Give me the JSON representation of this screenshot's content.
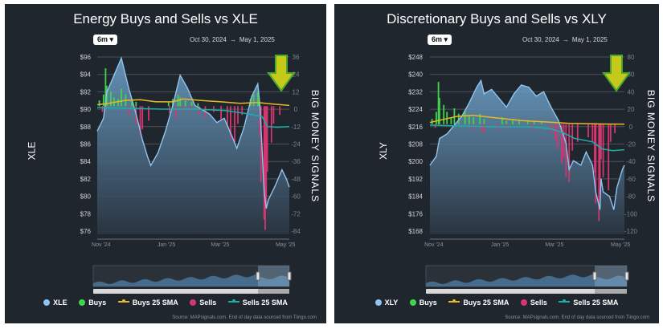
{
  "source_note": "Source: MAPsignals.com. End of day data sourced from Tiingo.com",
  "chart_data": [
    {
      "type": "line",
      "title": "Energy Buys and Sells vs XLE",
      "range_button": "6m",
      "date_from": "Oct 30, 2024",
      "date_arrow": "→",
      "date_to": "May 1, 2025",
      "ylabel_left": "XLE",
      "ylabel_right": "BIG MONEY SIGNALS",
      "y_left_ticks": [
        "$96",
        "$94",
        "$92",
        "$90",
        "$88",
        "$86",
        "$84",
        "$82",
        "$80",
        "$78",
        "$76"
      ],
      "y_left_range": [
        75,
        96
      ],
      "y_right_ticks": [
        "36",
        "24",
        "12",
        "0",
        "-12",
        "-24",
        "-36",
        "-48",
        "-60",
        "-72",
        "-84"
      ],
      "y_right_range": [
        -88,
        36
      ],
      "x_ticks": [
        "Nov '24",
        "Jan '25",
        "Mar '25",
        "May '25"
      ],
      "x_range": [
        "2024-10-30",
        "2025-05-01"
      ],
      "colors": {
        "price": "#8ec5ef",
        "buys": "#3fd44a",
        "buys_sma": "#e8b825",
        "sells": "#d43670",
        "sells_sma": "#1ab0a8"
      },
      "legend": [
        "XLE",
        "Buys",
        "Buys 25 SMA",
        "Sells",
        "Sells 25 SMA"
      ],
      "arrow_color": "#c4c91a",
      "series": [
        {
          "name": "XLE",
          "values": [
            [
              "2024-10-30",
              87.0
            ],
            [
              "2024-11-05",
              88.5
            ],
            [
              "2024-11-08",
              91.5
            ],
            [
              "2024-11-15",
              93.5
            ],
            [
              "2024-11-22",
              95.5
            ],
            [
              "2024-11-29",
              92.0
            ],
            [
              "2024-12-06",
              89.0
            ],
            [
              "2024-12-12",
              86.0
            ],
            [
              "2024-12-17",
              84.0
            ],
            [
              "2024-12-20",
              83.0
            ],
            [
              "2024-12-27",
              84.5
            ],
            [
              "2025-01-03",
              87.0
            ],
            [
              "2025-01-10",
              90.0
            ],
            [
              "2025-01-17",
              93.5
            ],
            [
              "2025-01-24",
              92.0
            ],
            [
              "2025-01-31",
              90.0
            ],
            [
              "2025-02-07",
              89.5
            ],
            [
              "2025-02-14",
              89.0
            ],
            [
              "2025-02-21",
              88.0
            ],
            [
              "2025-02-28",
              88.5
            ],
            [
              "2025-03-07",
              86.5
            ],
            [
              "2025-03-12",
              85.0
            ],
            [
              "2025-03-19",
              87.5
            ],
            [
              "2025-03-26",
              91.0
            ],
            [
              "2025-04-01",
              92.5
            ],
            [
              "2025-04-03",
              90.0
            ],
            [
              "2025-04-07",
              80.0
            ],
            [
              "2025-04-09",
              78.0
            ],
            [
              "2025-04-11",
              79.0
            ],
            [
              "2025-04-17",
              80.5
            ],
            [
              "2025-04-24",
              82.5
            ],
            [
              "2025-04-28",
              81.5
            ],
            [
              "2025-05-01",
              80.5
            ]
          ]
        },
        {
          "name": "Buys",
          "values": [
            [
              "2024-11-01",
              4
            ],
            [
              "2024-11-05",
              8
            ],
            [
              "2024-11-07",
              26
            ],
            [
              "2024-11-08",
              14
            ],
            [
              "2024-11-12",
              10
            ],
            [
              "2024-11-15",
              6
            ],
            [
              "2024-11-19",
              5
            ],
            [
              "2024-11-22",
              12
            ],
            [
              "2024-11-26",
              8
            ],
            [
              "2024-12-02",
              5
            ],
            [
              "2024-12-06",
              3
            ],
            [
              "2025-01-06",
              3
            ],
            [
              "2025-01-10",
              5
            ],
            [
              "2025-01-15",
              8
            ],
            [
              "2025-01-17",
              6
            ],
            [
              "2025-01-22",
              4
            ],
            [
              "2025-01-28",
              3
            ],
            [
              "2025-02-03",
              2
            ],
            [
              "2025-03-25",
              5
            ],
            [
              "2025-03-28",
              8
            ],
            [
              "2025-04-01",
              10
            ],
            [
              "2025-04-02",
              6
            ]
          ]
        },
        {
          "name": "Buys 25 SMA",
          "values": [
            [
              "2024-10-30",
              1
            ],
            [
              "2024-11-10",
              2
            ],
            [
              "2024-11-25",
              4
            ],
            [
              "2024-12-10",
              4.5
            ],
            [
              "2024-12-25",
              3
            ],
            [
              "2025-01-10",
              3
            ],
            [
              "2025-01-20",
              5
            ],
            [
              "2025-02-05",
              4
            ],
            [
              "2025-02-25",
              3
            ],
            [
              "2025-03-15",
              2
            ],
            [
              "2025-04-01",
              2.5
            ],
            [
              "2025-04-15",
              1.5
            ],
            [
              "2025-05-01",
              0.5
            ]
          ]
        },
        {
          "name": "Sells",
          "values": [
            [
              "2024-11-04",
              -4
            ],
            [
              "2024-11-29",
              -6
            ],
            [
              "2024-12-06",
              -12
            ],
            [
              "2024-12-10",
              -20
            ],
            [
              "2024-12-12",
              -16
            ],
            [
              "2024-12-18",
              -10
            ],
            [
              "2025-01-07",
              -5
            ],
            [
              "2025-01-13",
              -8
            ],
            [
              "2025-01-20",
              -4
            ],
            [
              "2025-01-27",
              -3
            ],
            [
              "2025-02-04",
              -6
            ],
            [
              "2025-02-10",
              -8
            ],
            [
              "2025-02-18",
              -4
            ],
            [
              "2025-02-25",
              -9
            ],
            [
              "2025-03-03",
              -14
            ],
            [
              "2025-03-06",
              -22
            ],
            [
              "2025-03-10",
              -26
            ],
            [
              "2025-03-13",
              -12
            ],
            [
              "2025-03-17",
              -6
            ],
            [
              "2025-04-03",
              -20
            ],
            [
              "2025-04-04",
              -52
            ],
            [
              "2025-04-07",
              -78
            ],
            [
              "2025-04-08",
              -85
            ],
            [
              "2025-04-09",
              -70
            ],
            [
              "2025-04-10",
              -45
            ],
            [
              "2025-04-14",
              -25
            ],
            [
              "2025-04-16",
              -12
            ],
            [
              "2025-04-22",
              -6
            ]
          ]
        },
        {
          "name": "Sells 25 SMA",
          "values": [
            [
              "2024-10-30",
              -1
            ],
            [
              "2024-12-01",
              -1.5
            ],
            [
              "2025-01-01",
              -2
            ],
            [
              "2025-02-01",
              -2
            ],
            [
              "2025-03-01",
              -3
            ],
            [
              "2025-03-20",
              -5
            ],
            [
              "2025-04-05",
              -7
            ],
            [
              "2025-04-10",
              -14
            ],
            [
              "2025-04-20",
              -14.5
            ],
            [
              "2025-05-01",
              -14
            ]
          ]
        }
      ]
    },
    {
      "type": "line",
      "title": "Discretionary Buys and Sells vs XLY",
      "range_button": "6m",
      "date_from": "Oct 30, 2024",
      "date_arrow": "→",
      "date_to": "May 1, 2025",
      "ylabel_left": "XLY",
      "ylabel_right": "BIG MONEY SIGNALS",
      "y_left_ticks": [
        "$248",
        "$240",
        "$232",
        "$224",
        "$216",
        "$208",
        "$200",
        "$192",
        "$184",
        "$176",
        "$168"
      ],
      "y_left_range": [
        167,
        248
      ],
      "y_right_ticks": [
        "80",
        "60",
        "40",
        "20",
        "0",
        "-20",
        "-40",
        "-60",
        "-80",
        "-100",
        "-120"
      ],
      "y_right_range": [
        -125,
        80
      ],
      "x_ticks": [
        "Nov '24",
        "Jan '25",
        "Mar '25",
        "May '25"
      ],
      "x_range": [
        "2024-10-30",
        "2025-05-01"
      ],
      "colors": {
        "price": "#8ec5ef",
        "buys": "#3fd44a",
        "buys_sma": "#e8b825",
        "sells": "#d43670",
        "sells_sma": "#1ab0a8"
      },
      "legend": [
        "XLY",
        "Buys",
        "Buys 25 SMA",
        "Sells",
        "Sells 25 SMA"
      ],
      "arrow_color": "#c4c91a",
      "series": [
        {
          "name": "XLY",
          "values": [
            [
              "2024-10-30",
              198
            ],
            [
              "2024-11-05",
              202
            ],
            [
              "2024-11-08",
              210
            ],
            [
              "2024-11-15",
              212
            ],
            [
              "2024-11-22",
              216
            ],
            [
              "2024-11-29",
              220
            ],
            [
              "2024-12-06",
              226
            ],
            [
              "2024-12-13",
              233
            ],
            [
              "2024-12-17",
              236
            ],
            [
              "2024-12-20",
              230
            ],
            [
              "2024-12-27",
              232
            ],
            [
              "2025-01-03",
              228
            ],
            [
              "2025-01-10",
              224
            ],
            [
              "2025-01-17",
              230
            ],
            [
              "2025-01-24",
              234
            ],
            [
              "2025-01-31",
              233
            ],
            [
              "2025-02-07",
              229
            ],
            [
              "2025-02-14",
              231
            ],
            [
              "2025-02-21",
              224
            ],
            [
              "2025-02-28",
              218
            ],
            [
              "2025-03-07",
              208
            ],
            [
              "2025-03-10",
              196
            ],
            [
              "2025-03-14",
              200
            ],
            [
              "2025-03-21",
              198
            ],
            [
              "2025-03-26",
              204
            ],
            [
              "2025-04-01",
              198
            ],
            [
              "2025-04-04",
              186
            ],
            [
              "2025-04-08",
              178
            ],
            [
              "2025-04-09",
              192
            ],
            [
              "2025-04-11",
              186
            ],
            [
              "2025-04-17",
              184
            ],
            [
              "2025-04-21",
              178
            ],
            [
              "2025-04-24",
              188
            ],
            [
              "2025-04-29",
              196
            ],
            [
              "2025-05-01",
              198
            ]
          ]
        },
        {
          "name": "Buys",
          "values": [
            [
              "2024-11-01",
              6
            ],
            [
              "2024-11-05",
              14
            ],
            [
              "2024-11-07",
              48
            ],
            [
              "2024-11-08",
              30
            ],
            [
              "2024-11-12",
              22
            ],
            [
              "2024-11-15",
              14
            ],
            [
              "2024-11-19",
              8
            ],
            [
              "2024-11-22",
              18
            ],
            [
              "2024-11-26",
              12
            ],
            [
              "2024-12-02",
              16
            ],
            [
              "2024-12-06",
              10
            ],
            [
              "2024-12-10",
              8
            ],
            [
              "2024-12-16",
              12
            ],
            [
              "2024-12-20",
              6
            ],
            [
              "2025-01-06",
              8
            ],
            [
              "2025-01-10",
              4
            ],
            [
              "2025-01-16",
              6
            ],
            [
              "2025-01-22",
              5
            ],
            [
              "2025-01-30",
              3
            ],
            [
              "2025-02-05",
              4
            ],
            [
              "2025-02-12",
              3
            ]
          ]
        },
        {
          "name": "Buys 25 SMA",
          "values": [
            [
              "2024-10-30",
              2
            ],
            [
              "2024-11-10",
              5
            ],
            [
              "2024-11-25",
              9
            ],
            [
              "2024-12-10",
              10
            ],
            [
              "2024-12-25",
              8
            ],
            [
              "2025-01-10",
              6
            ],
            [
              "2025-01-25",
              4
            ],
            [
              "2025-02-10",
              3
            ],
            [
              "2025-02-25",
              2
            ],
            [
              "2025-03-10",
              1
            ],
            [
              "2025-04-01",
              0.5
            ],
            [
              "2025-04-15",
              0.2
            ],
            [
              "2025-05-01",
              0
            ]
          ]
        },
        {
          "name": "Sells",
          "values": [
            [
              "2024-11-04",
              -4
            ],
            [
              "2024-12-09",
              -6
            ],
            [
              "2024-12-18",
              -10
            ],
            [
              "2024-12-20",
              -8
            ],
            [
              "2025-01-02",
              -6
            ],
            [
              "2025-01-10",
              -5
            ],
            [
              "2025-02-03",
              -6
            ],
            [
              "2025-02-21",
              -10
            ],
            [
              "2025-02-25",
              -18
            ],
            [
              "2025-02-27",
              -28
            ],
            [
              "2025-03-03",
              -45
            ],
            [
              "2025-03-05",
              -38
            ],
            [
              "2025-03-07",
              -60
            ],
            [
              "2025-03-10",
              -66
            ],
            [
              "2025-03-13",
              -30
            ],
            [
              "2025-03-18",
              -20
            ],
            [
              "2025-03-28",
              -15
            ],
            [
              "2025-04-01",
              -20
            ],
            [
              "2025-04-03",
              -55
            ],
            [
              "2025-04-04",
              -90
            ],
            [
              "2025-04-07",
              -110
            ],
            [
              "2025-04-08",
              -80
            ],
            [
              "2025-04-09",
              -40
            ],
            [
              "2025-04-11",
              -60
            ],
            [
              "2025-04-16",
              -75
            ],
            [
              "2025-04-18",
              -20
            ],
            [
              "2025-04-22",
              -10
            ]
          ]
        },
        {
          "name": "Sells 25 SMA",
          "values": [
            [
              "2024-10-30",
              -1
            ],
            [
              "2024-12-01",
              -2
            ],
            [
              "2025-01-01",
              -3
            ],
            [
              "2025-02-01",
              -3
            ],
            [
              "2025-02-20",
              -5
            ],
            [
              "2025-03-05",
              -10
            ],
            [
              "2025-03-15",
              -16
            ],
            [
              "2025-04-01",
              -20
            ],
            [
              "2025-04-10",
              -28
            ],
            [
              "2025-04-20",
              -30
            ],
            [
              "2025-05-01",
              -29
            ]
          ]
        }
      ]
    }
  ]
}
